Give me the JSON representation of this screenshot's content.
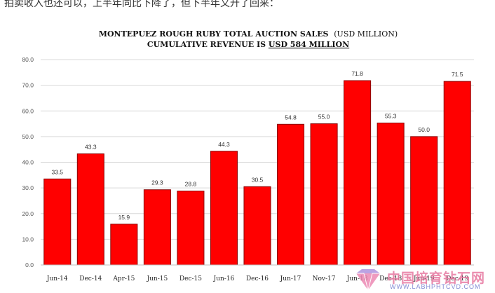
{
  "intro_text": "拍卖收入也还可以，上半年同比下降了，但下半年又升了回来：",
  "chart_data": {
    "type": "bar",
    "title": "MONTEPUEZ ROUGH RUBY TOTAL AUCTION SALES",
    "title_unit": "(USD MILLION)",
    "subtitle_prefix": "CUMULATIVE REVENUE IS ",
    "subtitle_value": "USD 584 MILLION",
    "xlabel": "",
    "ylabel": "",
    "ylim": [
      0,
      80
    ],
    "yticks": [
      "0.0",
      "10.0",
      "20.0",
      "30.0",
      "40.0",
      "50.0",
      "60.0",
      "70.0",
      "80.0"
    ],
    "categories": [
      "Jun-14",
      "Dec-14",
      "Apr-15",
      "Jun-15",
      "Dec-15",
      "Jun-16",
      "Dec-16",
      "Jun-17",
      "Nov-17",
      "Jun-18",
      "Dec-18",
      "Jun-19",
      "Dec-19"
    ],
    "values": [
      33.5,
      43.3,
      15.9,
      29.3,
      28.8,
      44.3,
      30.5,
      54.8,
      55.0,
      71.8,
      55.3,
      50.0,
      71.5
    ],
    "value_labels": [
      "33.5",
      "43.3",
      "15.9",
      "29.3",
      "28.8",
      "44.3",
      "30.5",
      "54.8",
      "55.0",
      "71.8",
      "55.3",
      "50.0",
      "71.5"
    ],
    "grid": true,
    "legend": "none",
    "bar_color": "#ff0000",
    "bar_edge_color": "#8a0000"
  },
  "watermark": {
    "text": "中国培育钻石网",
    "url": "WWW.LABHPHTCVD.COM"
  }
}
